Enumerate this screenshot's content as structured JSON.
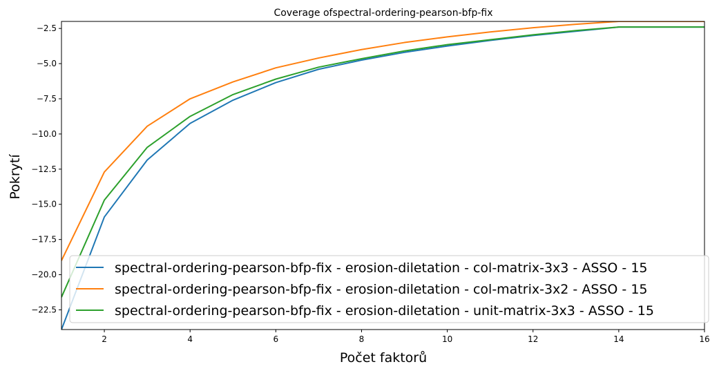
{
  "chart_data": {
    "type": "line",
    "title": "Coverage ofspectral-ordering-pearson-bfp-fix",
    "xlabel": "Počet faktorů",
    "ylabel": "Pokrytí",
    "xlim": [
      1,
      16
    ],
    "ylim": [
      -23.9,
      -2.0
    ],
    "xticks": [
      2,
      4,
      6,
      8,
      10,
      12,
      14,
      16
    ],
    "yticks": [
      -22.5,
      -20.0,
      -17.5,
      -15.0,
      -12.5,
      -10.0,
      -7.5,
      -5.0,
      -2.5
    ],
    "x": [
      1,
      2,
      3,
      4,
      5,
      6,
      7,
      8,
      9,
      10,
      11,
      12,
      13,
      14,
      15,
      16
    ],
    "series": [
      {
        "name": "spectral-ordering-pearson-bfp-fix - erosion-diletation - col-matrix-3x3 - ASSO - 15",
        "color": "#1f77b4",
        "values": [
          -23.9,
          -15.9,
          -11.85,
          -9.25,
          -7.6,
          -6.35,
          -5.4,
          -4.75,
          -4.2,
          -3.75,
          -3.35,
          -3.0,
          -2.7,
          -2.4,
          -2.4,
          -2.4
        ]
      },
      {
        "name": "spectral-ordering-pearson-bfp-fix - erosion-diletation - col-matrix-3x2 - ASSO - 15",
        "color": "#ff7f0e",
        "values": [
          -19.0,
          -12.7,
          -9.45,
          -7.5,
          -6.3,
          -5.3,
          -4.6,
          -4.0,
          -3.5,
          -3.1,
          -2.75,
          -2.45,
          -2.2,
          -2.0,
          -2.0,
          -2.0
        ]
      },
      {
        "name": "spectral-ordering-pearson-bfp-fix - erosion-diletation - unit-matrix-3x3 - ASSO - 15",
        "color": "#2ca02c",
        "values": [
          -21.6,
          -14.7,
          -10.95,
          -8.75,
          -7.2,
          -6.1,
          -5.25,
          -4.65,
          -4.1,
          -3.65,
          -3.3,
          -2.95,
          -2.65,
          -2.4,
          -2.4,
          -2.4
        ]
      }
    ],
    "grid": false,
    "legend_position": "lower-right"
  }
}
